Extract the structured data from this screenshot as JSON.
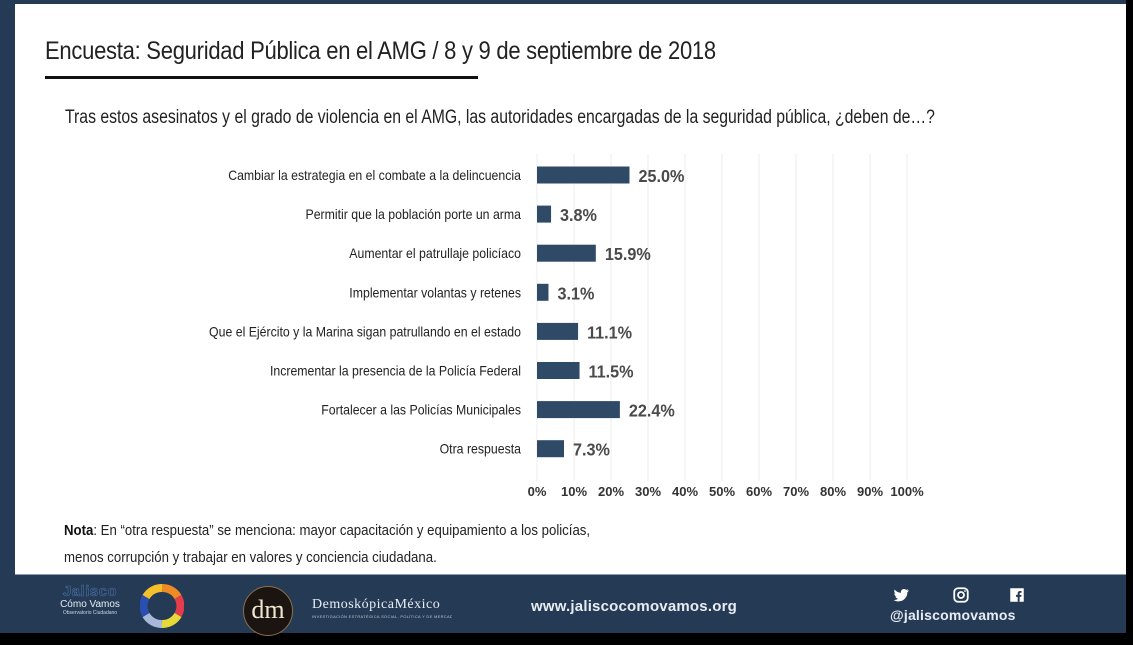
{
  "header": {
    "title": "Encuesta: Seguridad Pública en el AMG / 8 y 9 de septiembre de 2018",
    "question": "Tras estos asesinatos y el grado de violencia en el AMG, las autoridades encargadas de la seguridad pública, ¿deben de…?"
  },
  "chart_data": {
    "type": "bar",
    "orientation": "horizontal",
    "title": "Tras estos asesinatos y el grado de violencia en el AMG, las autoridades encargadas de la seguridad pública, ¿deben de…?",
    "categories": [
      "Cambiar la estrategia en el combate a la delincuencia",
      "Permitir que la población porte un arma",
      "Aumentar el patrullaje policíaco",
      "Implementar volantas y retenes",
      "Que el Ejército y la Marina sigan patrullando en el estado",
      "Incrementar la presencia de la Policía Federal",
      "Fortalecer a las Policías Municipales",
      "Otra respuesta"
    ],
    "values": [
      25.0,
      3.8,
      15.9,
      3.1,
      11.1,
      11.5,
      22.4,
      7.3
    ],
    "value_labels": [
      "25.0%",
      "3.8%",
      "15.9%",
      "3.1%",
      "11.1%",
      "11.5%",
      "22.4%",
      "7.3%"
    ],
    "xlabel": "",
    "ylabel": "",
    "xlim": [
      0,
      100
    ],
    "x_ticks": [
      "0%",
      "10%",
      "20%",
      "30%",
      "40%",
      "50%",
      "60%",
      "70%",
      "80%",
      "90%",
      "100%"
    ],
    "grid": true,
    "legend": "none",
    "bar_color": "#2f4a66"
  },
  "note": {
    "label": "Nota",
    "text": ": En “otra respuesta” se menciona: mayor capacitación y equipamiento a los policías, menos corrupción y trabajar en valores y conciencia ciudadana."
  },
  "footer": {
    "jalisco_logo": {
      "line1": "Jalisco",
      "line2": "Cómo Vamos",
      "line3": "Observatorio Ciudadano"
    },
    "dm_logo": {
      "monogram": "dm",
      "name": "DemoskópicaMéxico",
      "tagline": "INVESTIGACIÓN ESTRATÉGICA SOCIAL, POLÍTICA Y DE MERCADO"
    },
    "website": "www.jaliscocomovamos.org",
    "social_icons": [
      "twitter-icon",
      "instagram-icon",
      "facebook-icon"
    ],
    "handle": "@jaliscomovamos"
  },
  "colors": {
    "frame": "#253b55",
    "bar": "#2f4a66",
    "text": "#222222",
    "value_label": "#4a4a4a"
  }
}
